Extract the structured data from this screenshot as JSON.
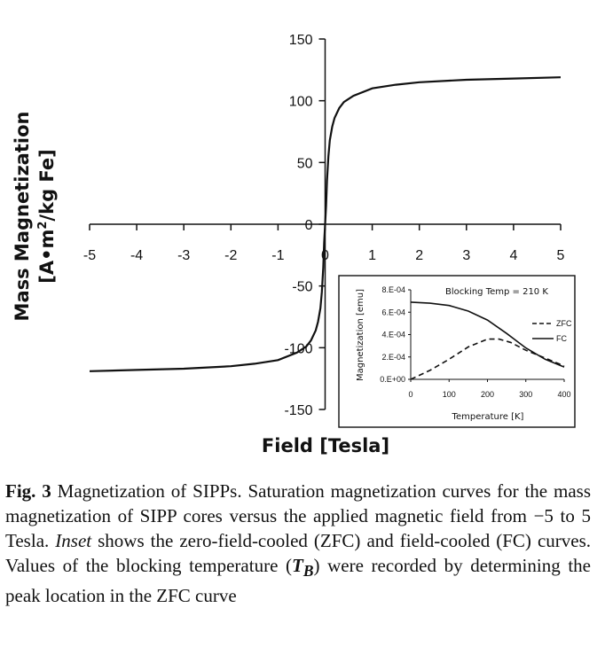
{
  "chart_data": [
    {
      "type": "line",
      "title": "",
      "xlabel": "Field [Tesla]",
      "ylabel_line1": "Mass Magnetization",
      "ylabel_line2_prefix": "[A•m",
      "ylabel_line2_sup": "2",
      "ylabel_line2_suffix": "/kg Fe]",
      "xlim": [
        -5,
        5
      ],
      "ylim": [
        -150,
        150
      ],
      "x_ticks": [
        -5,
        -4,
        -3,
        -2,
        -1,
        0,
        1,
        2,
        3,
        4,
        5
      ],
      "y_ticks": [
        -150,
        -100,
        -50,
        0,
        50,
        100,
        150
      ],
      "grid": false,
      "series": [
        {
          "x": [
            -5,
            -4,
            -3,
            -2,
            -1.5,
            -1,
            -0.6,
            -0.4,
            -0.3,
            -0.2,
            -0.15,
            -0.1,
            -0.07,
            -0.04,
            -0.02,
            0,
            0.02,
            0.04,
            0.07,
            0.1,
            0.15,
            0.2,
            0.3,
            0.4,
            0.6,
            1,
            1.5,
            2,
            3,
            4,
            5
          ],
          "y": [
            -119,
            -118,
            -117,
            -115,
            -113,
            -110,
            -104,
            -99,
            -94,
            -86,
            -79,
            -68,
            -55,
            -35,
            -15,
            0,
            15,
            35,
            55,
            68,
            79,
            86,
            94,
            99,
            104,
            110,
            113,
            115,
            117,
            118,
            119
          ]
        }
      ],
      "color": "#111111"
    },
    {
      "type": "line",
      "title": "Blocking Temp = 210 K",
      "xlabel": "Temperature [K]",
      "ylabel": "Magnetization [emu]",
      "xlim": [
        0,
        400
      ],
      "ylim": [
        0,
        0.0008
      ],
      "x_ticks": [
        "0",
        "100",
        "200",
        "300",
        "400"
      ],
      "y_ticks": [
        "0.E+00",
        "2.E-04",
        "4.E-04",
        "6.E-04",
        "8.E-04"
      ],
      "y_tick_values": [
        0,
        0.0002,
        0.0004,
        0.0006,
        0.0008
      ],
      "legend_placement": "right",
      "series": [
        {
          "name": "ZFC",
          "dash": "dashed",
          "x": [
            0,
            50,
            100,
            150,
            200,
            230,
            260,
            300,
            350,
            400
          ],
          "y": [
            0.0,
            8e-05,
            0.00018,
            0.00029,
            0.00036,
            0.00036,
            0.00033,
            0.00026,
            0.00019,
            0.00012
          ]
        },
        {
          "name": "FC",
          "dash": "solid",
          "x": [
            0,
            50,
            100,
            150,
            200,
            250,
            300,
            350,
            400
          ],
          "y": [
            0.00069,
            0.00068,
            0.00066,
            0.00061,
            0.00053,
            0.00041,
            0.00028,
            0.00018,
            0.00011
          ]
        }
      ]
    }
  ],
  "caption": {
    "lead": "Fig. 3",
    "part1": " Magnetization of SIPPs. Saturation magnetization curves for the mass magnetization of SIPP cores versus the applied magnetic field from −5 to 5 Tesla. ",
    "italic": "Inset",
    "part2": " shows the zero-field-cooled (ZFC) and field-cooled (FC) curves. Values of the blocking temperature (",
    "tb_symbol": "T",
    "tb_sub": "B",
    "part3": ") were recorded by determining the peak location in the ZFC curve"
  }
}
